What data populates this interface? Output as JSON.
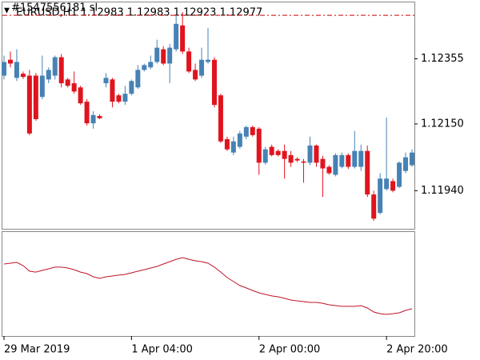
{
  "chart_data": {
    "type": "candlestick",
    "order_label": "#1547556181 sl",
    "header": "EURUSD,H1  1.12983 1.12983 1.12923 1.12977",
    "up_color": "#4682b4",
    "down_color": "#e0141e",
    "ask_line": 1.12492,
    "ask_color": "#cc0000",
    "ylim": [
      1.1182,
      1.12535
    ],
    "yticks": [
      {
        "value": 1.1194,
        "label": "1.11940"
      },
      {
        "value": 1.1215,
        "label": "1.12150"
      },
      1.12355
    ],
    "categories": [
      "29 Mar 2019",
      null,
      null,
      null,
      null,
      null,
      null,
      null,
      null,
      null,
      null,
      null,
      null,
      null,
      null,
      null,
      null,
      null,
      null,
      null,
      "1 Apr 04:00",
      null,
      null,
      null,
      null,
      null,
      null,
      null,
      null,
      null,
      null,
      null,
      null,
      null,
      null,
      null,
      null,
      null,
      null,
      null,
      "2 Apr 00:00",
      null,
      null,
      null,
      null,
      null,
      null,
      null,
      null,
      null,
      null,
      null,
      null,
      null,
      null,
      null,
      null,
      null,
      null,
      null,
      "2 Apr 20:00",
      null,
      null,
      null,
      null
    ],
    "open": [
      1.12302,
      1.12352,
      1.12295,
      1.12308,
      1.12302,
      1.12302,
      1.12235,
      1.1229,
      1.12302,
      1.1236,
      1.1229,
      1.12278,
      1.12265,
      1.1222,
      1.12152,
      1.12175,
      1.12278,
      1.1229,
      1.1224,
      1.1222,
      1.12245,
      1.12265,
      1.1232,
      1.12328,
      1.12345,
      1.12385,
      1.1234,
      1.12385,
      1.1246,
      1.12378,
      1.1232,
      1.12302,
      1.12345,
      1.12352,
      1.1224,
      1.12102,
      1.1206,
      1.12078,
      1.1211,
      1.1214,
      1.12135,
      1.12028,
      1.12078,
      1.12065,
      1.12065,
      1.12052,
      1.1204,
      1.12032,
      1.12028,
      1.12082,
      1.1204,
      1.12015,
      1.1199,
      1.12015,
      1.12052,
      1.12015,
      1.12015,
      1.12065,
      1.11928,
      1.1187,
      1.11945,
      1.1197,
      1.11952,
      1.12002,
      1.1202
    ],
    "high": [
      1.12365,
      1.12378,
      1.12385,
      1.12315,
      1.1232,
      1.1231,
      1.12365,
      1.12328,
      1.12365,
      1.1237,
      1.12295,
      1.12315,
      1.1227,
      1.12228,
      1.1219,
      1.1218,
      1.1231,
      1.12295,
      1.12245,
      1.1227,
      1.1229,
      1.12335,
      1.1234,
      1.12365,
      1.12415,
      1.12395,
      1.12402,
      1.1249,
      1.12502,
      1.1239,
      1.1234,
      1.1239,
      1.12452,
      1.1236,
      1.12245,
      1.1211,
      1.1211,
      1.12128,
      1.12145,
      1.12145,
      1.1214,
      1.12078,
      1.12085,
      1.1207,
      1.12085,
      1.12065,
      1.12045,
      1.1204,
      1.1211,
      1.12085,
      1.1205,
      1.1202,
      1.12058,
      1.1206,
      1.12058,
      1.12128,
      1.12085,
      1.12082,
      1.1194,
      1.11995,
      1.1217,
      1.11978,
      1.12032,
      1.1206,
      1.1207
    ],
    "low": [
      1.1229,
      1.12328,
      1.12285,
      1.12292,
      1.12115,
      1.1216,
      1.12228,
      1.12278,
      1.1229,
      1.12265,
      1.12265,
      1.12245,
      1.1221,
      1.12145,
      1.12135,
      1.12165,
      1.12265,
      1.12202,
      1.12215,
      1.1221,
      1.1224,
      1.1226,
      1.12315,
      1.12322,
      1.1234,
      1.12335,
      1.12278,
      1.12378,
      1.1237,
      1.1231,
      1.12285,
      1.12295,
      1.1234,
      1.12202,
      1.1209,
      1.12065,
      1.12052,
      1.12072,
      1.12102,
      1.1211,
      1.1199,
      1.12022,
      1.12048,
      1.12048,
      1.11978,
      1.12015,
      1.1203,
      1.11965,
      1.1202,
      1.12015,
      1.1192,
      1.1199,
      1.11985,
      1.1201,
      1.12008,
      1.1201,
      1.12002,
      1.1192,
      1.11845,
      1.11865,
      1.1194,
      1.11935,
      1.11948,
      1.11995,
      1.12015
    ],
    "close": [
      1.12345,
      1.1234,
      1.12345,
      1.12298,
      1.1212,
      1.12165,
      1.12302,
      1.1232,
      1.1236,
      1.12278,
      1.1227,
      1.12252,
      1.12215,
      1.12152,
      1.12178,
      1.12168,
      1.12295,
      1.1222,
      1.1222,
      1.12245,
      1.12285,
      1.1232,
      1.12335,
      1.12345,
      1.1239,
      1.1234,
      1.1239,
      1.12465,
      1.12378,
      1.12315,
      1.1229,
      1.12352,
      1.12352,
      1.1221,
      1.12095,
      1.1207,
      1.12095,
      1.1212,
      1.1214,
      1.12115,
      1.12028,
      1.1207,
      1.12052,
      1.12052,
      1.1204,
      1.12028,
      1.12035,
      1.12028,
      1.12082,
      1.12028,
      1.1201,
      1.11995,
      1.12052,
      1.12052,
      1.12015,
      1.12065,
      1.12065,
      1.11928,
      1.11852,
      1.11978,
      1.11978,
      1.1194,
      1.12028,
      1.12045,
      1.1206
    ],
    "indicator": {
      "color": "#c0142a",
      "ylim": [
        0,
        100
      ],
      "values": [
        69.2,
        70.0,
        70.8,
        67.7,
        62.3,
        61.5,
        63.1,
        64.6,
        66.2,
        66.2,
        65.4,
        63.8,
        61.5,
        60.0,
        56.9,
        55.4,
        56.9,
        57.7,
        58.5,
        59.2,
        60.8,
        62.3,
        63.8,
        65.4,
        66.9,
        69.2,
        71.5,
        73.8,
        75.4,
        73.8,
        72.3,
        71.5,
        70.0,
        66.2,
        61.5,
        56.2,
        52.3,
        48.5,
        46.2,
        43.8,
        41.5,
        40.0,
        38.5,
        37.7,
        36.2,
        34.6,
        33.8,
        33.1,
        32.3,
        32.3,
        31.5,
        30.0,
        29.2,
        28.5,
        28.5,
        28.5,
        29.2,
        26.9,
        23.1,
        21.5,
        20.8,
        21.5,
        22.3,
        24.6,
        26.2
      ]
    }
  }
}
